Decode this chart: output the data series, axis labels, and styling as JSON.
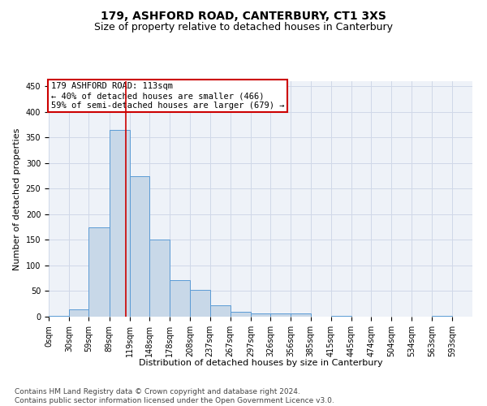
{
  "title": "179, ASHFORD ROAD, CANTERBURY, CT1 3XS",
  "subtitle": "Size of property relative to detached houses in Canterbury",
  "xlabel": "Distribution of detached houses by size in Canterbury",
  "ylabel": "Number of detached properties",
  "bar_color": "#c8d8e8",
  "bar_edge_color": "#5b9bd5",
  "bar_heights": [
    2,
    15,
    175,
    365,
    275,
    150,
    72,
    53,
    22,
    10,
    7,
    6,
    6,
    0,
    2,
    0,
    0,
    0,
    0,
    2,
    0
  ],
  "bin_labels": [
    "0sqm",
    "30sqm",
    "59sqm",
    "89sqm",
    "119sqm",
    "148sqm",
    "178sqm",
    "208sqm",
    "237sqm",
    "267sqm",
    "297sqm",
    "326sqm",
    "356sqm",
    "385sqm",
    "415sqm",
    "445sqm",
    "474sqm",
    "504sqm",
    "534sqm",
    "563sqm",
    "593sqm"
  ],
  "bin_edges": [
    0,
    30,
    59,
    89,
    119,
    148,
    178,
    208,
    237,
    267,
    297,
    326,
    356,
    385,
    415,
    445,
    474,
    504,
    534,
    563,
    593,
    623
  ],
  "property_size": 113,
  "red_line_color": "#cc0000",
  "annotation_text": "179 ASHFORD ROAD: 113sqm\n← 40% of detached houses are smaller (466)\n59% of semi-detached houses are larger (679) →",
  "annotation_box_color": "#cc0000",
  "ylim": [
    0,
    460
  ],
  "yticks": [
    0,
    50,
    100,
    150,
    200,
    250,
    300,
    350,
    400,
    450
  ],
  "grid_color": "#d0d8e8",
  "bg_color": "#eef2f8",
  "footer": "Contains HM Land Registry data © Crown copyright and database right 2024.\nContains public sector information licensed under the Open Government Licence v3.0.",
  "title_fontsize": 10,
  "subtitle_fontsize": 9,
  "label_fontsize": 8,
  "tick_fontsize": 7,
  "annotation_fontsize": 7.5,
  "footer_fontsize": 6.5
}
